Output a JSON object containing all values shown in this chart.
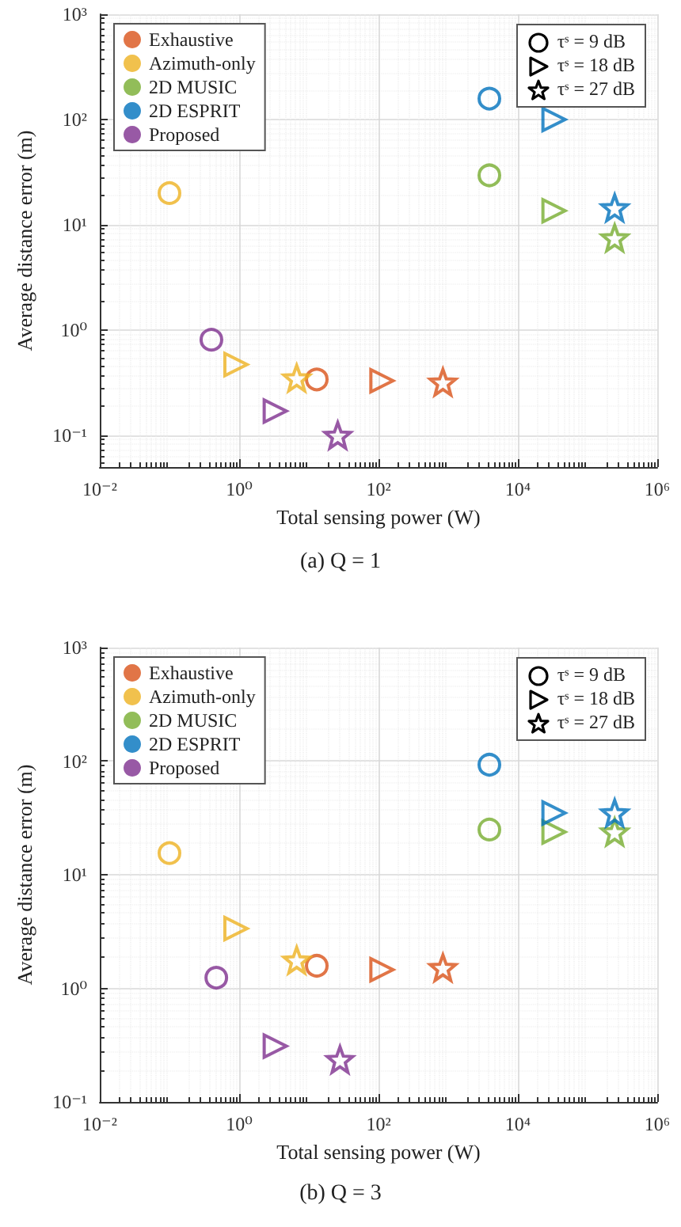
{
  "chart_data": [
    {
      "type": "scatter",
      "title": "(a) Q = 1",
      "xlabel": "Total sensing power (W)",
      "ylabel": "Average distance error (m)",
      "log": "xy",
      "grid": true,
      "legend": "top left",
      "xlim": [
        0.01,
        1000000
      ],
      "xticks": [
        {
          "value": 0.01,
          "label": "10⁻²"
        },
        {
          "value": 1,
          "label": "10⁰"
        },
        {
          "value": 100,
          "label": "10²"
        },
        {
          "value": 10000,
          "label": "10⁴"
        },
        {
          "value": 1000000,
          "label": "10⁶"
        }
      ],
      "ylim": [
        0.05,
        1000
      ],
      "yticks": [
        {
          "value": 0.1,
          "label": "10⁻¹"
        },
        {
          "value": 1,
          "label": "10⁰"
        },
        {
          "value": 10,
          "label": "10¹"
        },
        {
          "value": 100,
          "label": "10²"
        },
        {
          "value": 1000,
          "label": "10³"
        }
      ],
      "annotations": [
        "τˢ = 9 dB",
        "τˢ = 18 dB",
        "τˢ = 27 dB"
      ],
      "series": [
        {
          "name": "Exhaustive",
          "color": "#d95319",
          "marker": "circle",
          "x": [
            13
          ],
          "values": [
            0.34
          ]
        },
        {
          "color": "#d95319",
          "marker": "triangle",
          "x": [
            112
          ],
          "values": [
            0.33
          ]
        },
        {
          "color": "#d95319",
          "marker": "star",
          "x": [
            840
          ],
          "values": [
            0.32
          ]
        },
        {
          "name": "Azimuth-only",
          "color": "#edb120",
          "marker": "circle",
          "x": [
            0.1
          ],
          "values": [
            20
          ]
        },
        {
          "color": "#edb120",
          "marker": "triangle",
          "x": [
            0.9
          ],
          "values": [
            0.47
          ]
        },
        {
          "color": "#edb120",
          "marker": "star",
          "x": [
            6.7
          ],
          "values": [
            0.35
          ]
        },
        {
          "name": "2D MUSIC",
          "color": "#77ac30",
          "marker": "circle",
          "x": [
            3900
          ],
          "values": [
            29.5
          ]
        },
        {
          "color": "#77ac30",
          "marker": "triangle",
          "x": [
            33000
          ],
          "values": [
            13.6
          ]
        },
        {
          "color": "#77ac30",
          "marker": "star",
          "x": [
            245000
          ],
          "values": [
            7.5
          ]
        },
        {
          "name": "2D ESPRIT",
          "color": "#0072bd",
          "marker": "circle",
          "x": [
            3900
          ],
          "values": [
            158
          ]
        },
        {
          "color": "#0072bd",
          "marker": "triangle",
          "x": [
            33000
          ],
          "values": [
            100
          ]
        },
        {
          "color": "#0072bd",
          "marker": "star",
          "x": [
            245000
          ],
          "values": [
            14.5
          ]
        },
        {
          "name": "Proposed",
          "color": "#7e2f8e",
          "marker": "circle",
          "x": [
            0.4
          ],
          "values": [
            0.81
          ]
        },
        {
          "color": "#7e2f8e",
          "marker": "triangle",
          "x": [
            3.3
          ],
          "values": [
            0.17
          ]
        },
        {
          "color": "#7e2f8e",
          "marker": "star",
          "x": [
            26
          ],
          "values": [
            0.1
          ]
        }
      ]
    },
    {
      "type": "scatter",
      "title": "(b) Q = 3",
      "xlabel": "Total sensing power (W)",
      "ylabel": "Average distance error (m)",
      "log": "xy",
      "grid": true,
      "legend": "top left",
      "xlim": [
        0.01,
        1000000
      ],
      "xticks": [
        {
          "value": 0.01,
          "label": "10⁻²"
        },
        {
          "value": 1,
          "label": "10⁰"
        },
        {
          "value": 100,
          "label": "10²"
        },
        {
          "value": 10000,
          "label": "10⁴"
        },
        {
          "value": 1000000,
          "label": "10⁶"
        }
      ],
      "ylim": [
        0.1,
        1000
      ],
      "yticks": [
        {
          "value": 0.1,
          "label": "10⁻¹"
        },
        {
          "value": 1,
          "label": "10⁰"
        },
        {
          "value": 10,
          "label": "10¹"
        },
        {
          "value": 100,
          "label": "10²"
        },
        {
          "value": 1000,
          "label": "10³"
        }
      ],
      "annotations": [
        "τˢ = 9 dB",
        "τˢ = 18 dB",
        "τˢ = 27 dB"
      ],
      "series": [
        {
          "name": "Exhaustive",
          "color": "#d95319",
          "marker": "circle",
          "x": [
            13
          ],
          "values": [
            1.58
          ]
        },
        {
          "color": "#d95319",
          "marker": "triangle",
          "x": [
            112
          ],
          "values": [
            1.46
          ]
        },
        {
          "color": "#d95319",
          "marker": "star",
          "x": [
            840
          ],
          "values": [
            1.52
          ]
        },
        {
          "name": "Azimuth-only",
          "color": "#edb120",
          "marker": "circle",
          "x": [
            0.1
          ],
          "values": [
            15.5
          ]
        },
        {
          "color": "#edb120",
          "marker": "triangle",
          "x": [
            0.9
          ],
          "values": [
            3.36
          ]
        },
        {
          "color": "#edb120",
          "marker": "star",
          "x": [
            6.7
          ],
          "values": [
            1.77
          ]
        },
        {
          "name": "2D MUSIC",
          "color": "#77ac30",
          "marker": "circle",
          "x": [
            3900
          ],
          "values": [
            25
          ]
        },
        {
          "color": "#77ac30",
          "marker": "triangle",
          "x": [
            33000
          ],
          "values": [
            23.8
          ]
        },
        {
          "color": "#77ac30",
          "marker": "star",
          "x": [
            245000
          ],
          "values": [
            23.8
          ]
        },
        {
          "name": "2D ESPRIT",
          "color": "#0072bd",
          "marker": "circle",
          "x": [
            3900
          ],
          "values": [
            93
          ]
        },
        {
          "color": "#0072bd",
          "marker": "triangle",
          "x": [
            33000
          ],
          "values": [
            35
          ]
        },
        {
          "color": "#0072bd",
          "marker": "star",
          "x": [
            245000
          ],
          "values": [
            35
          ]
        },
        {
          "name": "Proposed",
          "color": "#7e2f8e",
          "marker": "circle",
          "x": [
            0.47
          ],
          "values": [
            1.24
          ]
        },
        {
          "color": "#7e2f8e",
          "marker": "triangle",
          "x": [
            3.3
          ],
          "values": [
            0.31
          ]
        },
        {
          "color": "#7e2f8e",
          "marker": "star",
          "x": [
            28
          ],
          "values": [
            0.236
          ]
        }
      ]
    }
  ]
}
